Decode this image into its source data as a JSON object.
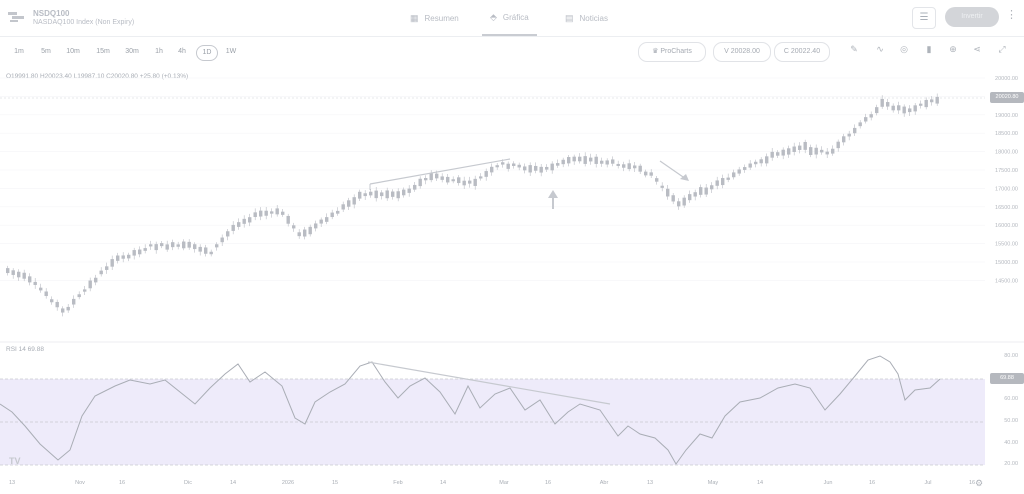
{
  "header": {
    "instrument_symbol": "NSDQ100",
    "instrument_name": "NASDAQ100 Index (Non Expiry)",
    "nav": [
      {
        "label": "Resumen",
        "icon": "overview-icon"
      },
      {
        "label": "Gráfica",
        "icon": "chart-icon",
        "active": true
      },
      {
        "label": "Noticias",
        "icon": "news-icon"
      }
    ],
    "invest_label": "Invertir"
  },
  "toolbar": {
    "timeframes": [
      "1m",
      "5m",
      "10m",
      "15m",
      "30m",
      "1h",
      "4h",
      "1D",
      "1W"
    ],
    "active_timeframe": "1D",
    "prochart_label": "ProCharts",
    "sell_label": "V 20028.00",
    "buy_label": "C 20022.40",
    "tools": [
      "pencil-icon",
      "indicators-icon",
      "target-icon",
      "chart-type-icon",
      "add-icon",
      "share-icon",
      "fullscreen-icon"
    ]
  },
  "ohlc_text": "O19991.80  H20023.40  L19987.10  C20020.80  +25.80 (+0.13%)",
  "rsi_text": "RSI 14  69.88",
  "price_axis": [
    "20000.00",
    "19500.00",
    "19000.00",
    "18500.00",
    "18000.00",
    "17500.00",
    "17000.00",
    "16500.00",
    "16000.00",
    "15500.00",
    "15000.00",
    "14500.00"
  ],
  "rsi_axis": [
    "80.00",
    "60.00",
    "50.00",
    "40.00",
    "20.00"
  ],
  "time_axis": [
    "13",
    "Nov",
    "16",
    "Dic",
    "14",
    "2026",
    "15",
    "Feb",
    "14",
    "Mar",
    "16",
    "Abr",
    "13",
    "May",
    "14",
    "Jun",
    "16",
    "Jul",
    "16"
  ],
  "current_price_tag": "20020.80",
  "current_rsi_tag": "69.88",
  "watermark": "TV",
  "colors": {
    "candle": "#b9bcc3",
    "trendline": "#c6c9cf",
    "rsi_band": "#eeebfa",
    "rsi_line": "#a9adb5",
    "axis_tag": "#b5b8be"
  }
}
